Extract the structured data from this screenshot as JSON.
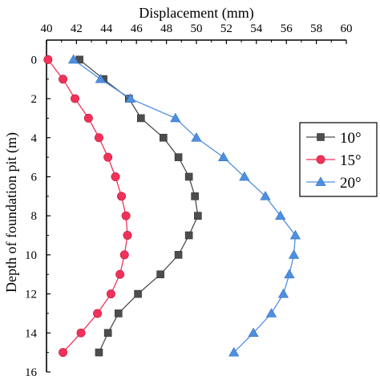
{
  "chart_data": {
    "type": "line",
    "xlabel": "Displacement (mm)",
    "ylabel": "Depth of foundation pit (m)",
    "xlim": [
      40,
      60
    ],
    "ylim": [
      16,
      -1
    ],
    "x_ticks": [
      40,
      42,
      44,
      46,
      48,
      50,
      52,
      54,
      56,
      58,
      60
    ],
    "y_ticks": [
      0,
      2,
      4,
      6,
      8,
      10,
      12,
      14,
      16
    ],
    "x_axis_position": "top",
    "y_axis_inverted": true,
    "grid": false,
    "legend_position": "right",
    "series": [
      {
        "name": "10°",
        "color": "#4d4d4d",
        "marker": "square",
        "points": [
          {
            "x": 42.2,
            "y": 0
          },
          {
            "x": 43.8,
            "y": 1
          },
          {
            "x": 45.5,
            "y": 2
          },
          {
            "x": 46.3,
            "y": 3
          },
          {
            "x": 47.8,
            "y": 4
          },
          {
            "x": 48.8,
            "y": 5
          },
          {
            "x": 49.5,
            "y": 6
          },
          {
            "x": 49.9,
            "y": 7
          },
          {
            "x": 50.1,
            "y": 8
          },
          {
            "x": 49.5,
            "y": 9
          },
          {
            "x": 48.8,
            "y": 10
          },
          {
            "x": 47.6,
            "y": 11
          },
          {
            "x": 46.1,
            "y": 12
          },
          {
            "x": 44.8,
            "y": 13
          },
          {
            "x": 44.1,
            "y": 14
          },
          {
            "x": 43.5,
            "y": 15
          }
        ]
      },
      {
        "name": "15°",
        "color": "#f0325a",
        "marker": "circle",
        "points": [
          {
            "x": 40.1,
            "y": 0
          },
          {
            "x": 41.1,
            "y": 1
          },
          {
            "x": 41.9,
            "y": 2
          },
          {
            "x": 42.8,
            "y": 3
          },
          {
            "x": 43.5,
            "y": 4
          },
          {
            "x": 44.1,
            "y": 5
          },
          {
            "x": 44.6,
            "y": 6
          },
          {
            "x": 45.0,
            "y": 7
          },
          {
            "x": 45.3,
            "y": 8
          },
          {
            "x": 45.4,
            "y": 9
          },
          {
            "x": 45.2,
            "y": 10
          },
          {
            "x": 44.9,
            "y": 11
          },
          {
            "x": 44.3,
            "y": 12
          },
          {
            "x": 43.4,
            "y": 13
          },
          {
            "x": 42.3,
            "y": 14
          },
          {
            "x": 41.1,
            "y": 15
          }
        ]
      },
      {
        "name": "20°",
        "color": "#4f8fe0",
        "marker": "triangle",
        "points": [
          {
            "x": 41.8,
            "y": 0
          },
          {
            "x": 43.6,
            "y": 1
          },
          {
            "x": 45.6,
            "y": 2
          },
          {
            "x": 48.6,
            "y": 3
          },
          {
            "x": 50.0,
            "y": 4
          },
          {
            "x": 51.8,
            "y": 5
          },
          {
            "x": 53.2,
            "y": 6
          },
          {
            "x": 54.6,
            "y": 7
          },
          {
            "x": 55.6,
            "y": 8
          },
          {
            "x": 56.6,
            "y": 9
          },
          {
            "x": 56.5,
            "y": 10
          },
          {
            "x": 56.2,
            "y": 11
          },
          {
            "x": 55.8,
            "y": 12
          },
          {
            "x": 55.0,
            "y": 13
          },
          {
            "x": 53.8,
            "y": 14
          },
          {
            "x": 52.5,
            "y": 15
          }
        ]
      }
    ]
  }
}
